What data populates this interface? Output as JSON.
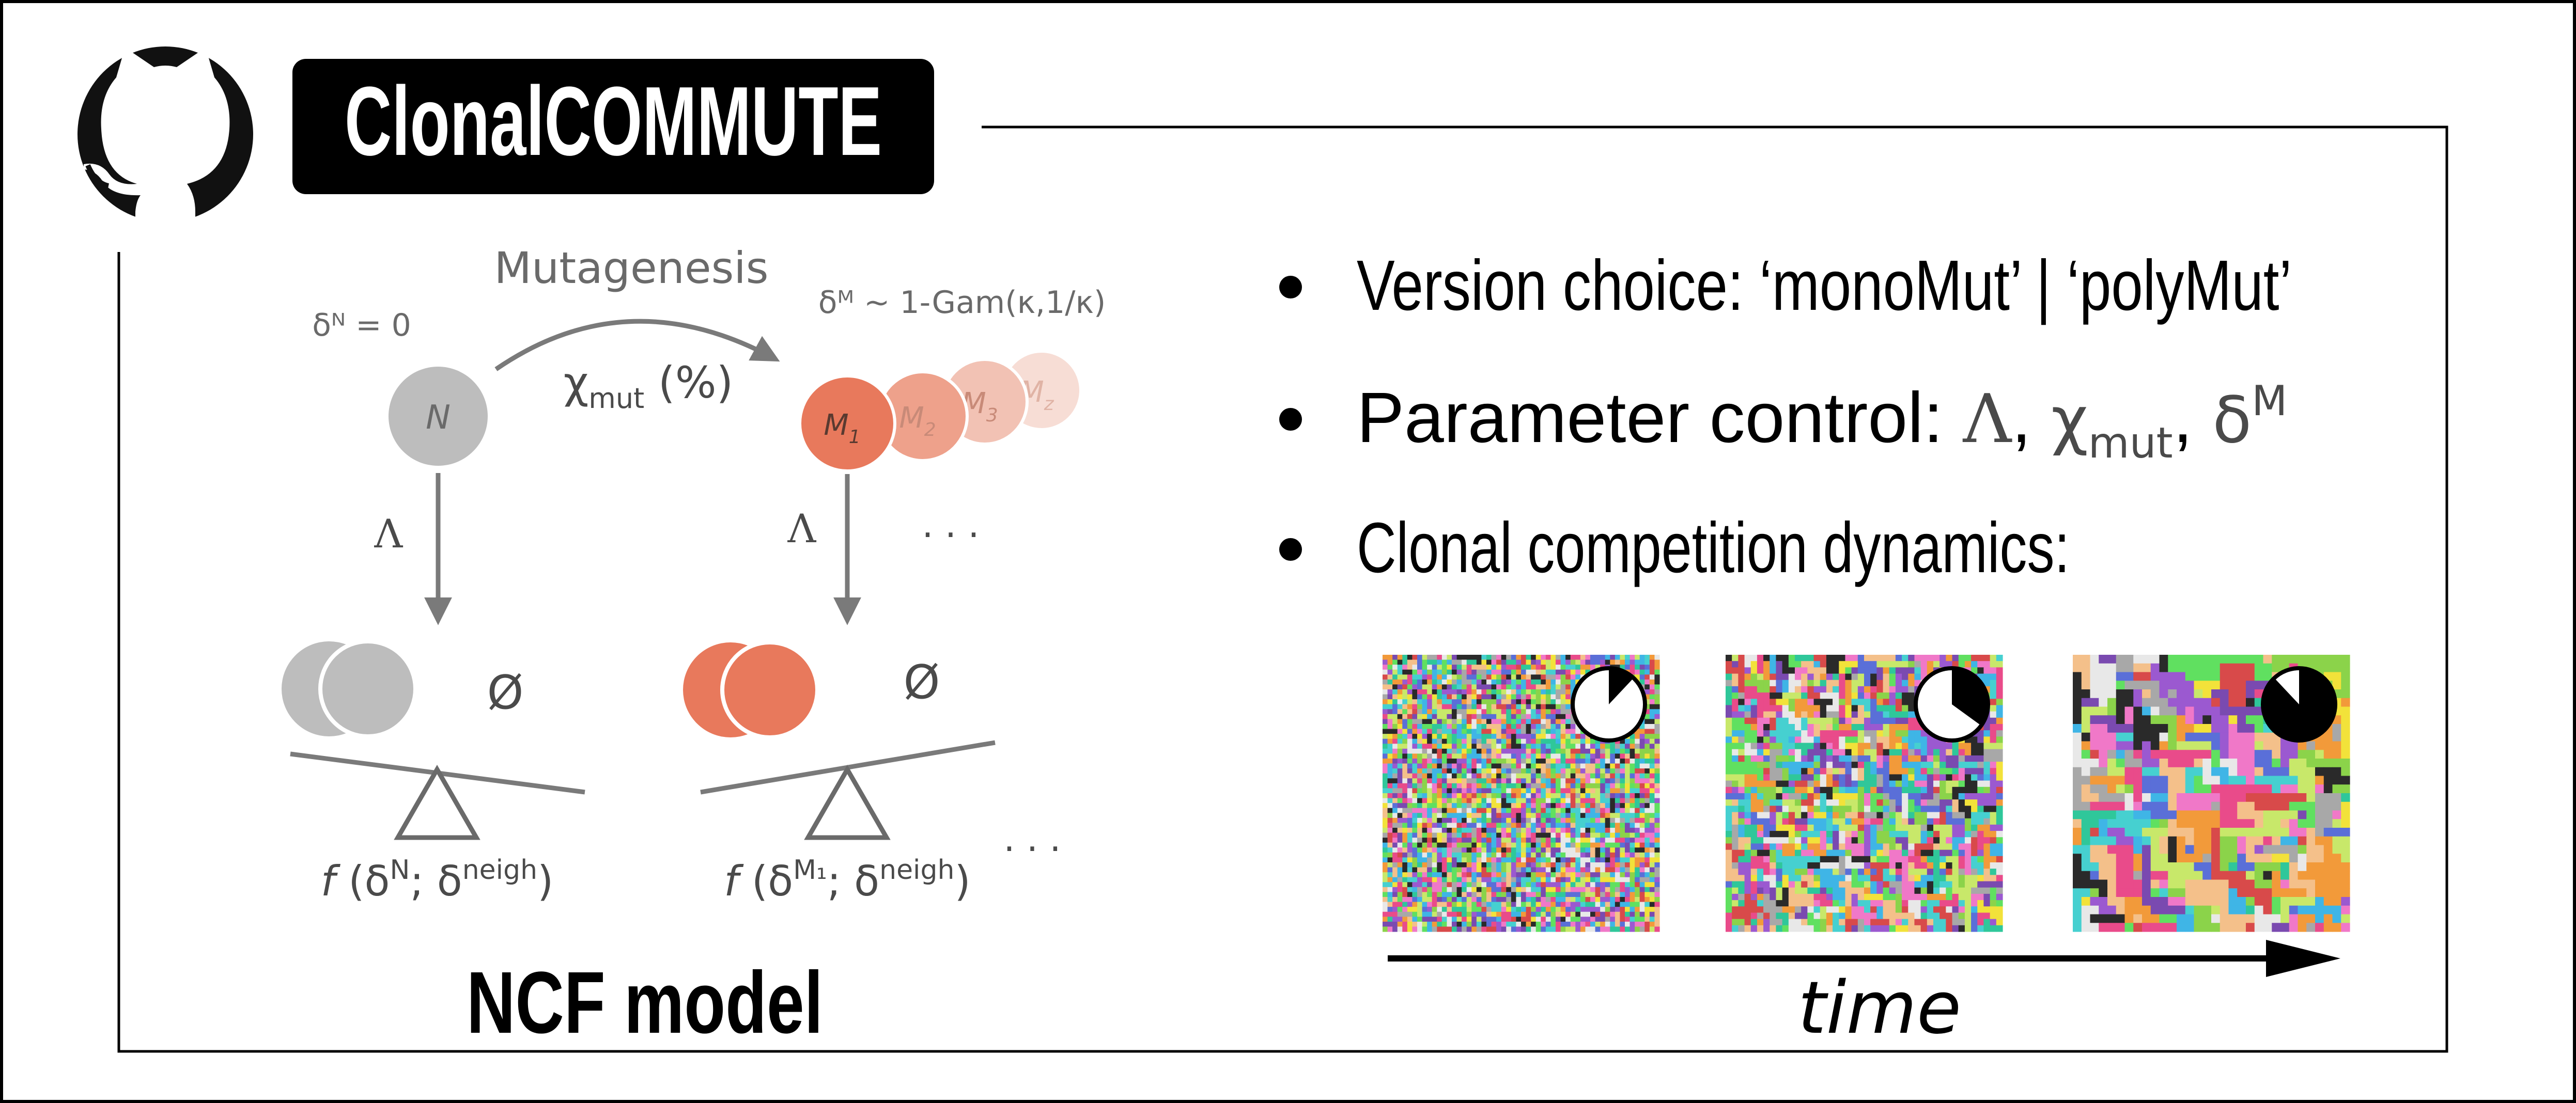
{
  "header": {
    "logo_icon": "github-octocat-icon",
    "title": "ClonalCOMMUTE"
  },
  "model": {
    "mutagenesis_label": "Mutagenesis",
    "delta_n_label": "δᴺ = 0",
    "delta_m_label": "δᴹ ~ 1-Gam(κ,1/κ)",
    "chi_symbol": "χ",
    "chi_sub": "mut",
    "chi_unit": " (%)",
    "normal_cell": "N",
    "mutant_cells": [
      {
        "letter": "M",
        "sub": "1",
        "color": "#e8795c"
      },
      {
        "letter": "M",
        "sub": "2",
        "color": "#eea18b"
      },
      {
        "letter": "M",
        "sub": "3",
        "color": "#f2c2b4"
      },
      {
        "letter": "M",
        "sub": "z",
        "color": "#f7ddd5"
      }
    ],
    "lambda_left": "Λ",
    "lambda_right": "Λ",
    "ellipsis_mid": "· · ·",
    "ellipsis_bottom": "· · ·",
    "empty_set_left": "Ø",
    "empty_set_right": "Ø",
    "fitness_left": {
      "f": "f",
      "open": " (δ",
      "sup1": "N",
      "mid": "; δ",
      "sup2": "neigh",
      "close": ")"
    },
    "fitness_right": {
      "f": "f",
      "open": " (δ",
      "sup1": "M₁",
      "mid": "; δ",
      "sup2": "neigh",
      "close": ")"
    },
    "caption": "NCF model",
    "colors": {
      "normal": "#bdbdbd",
      "mutant": "#e8795c",
      "arrow": "#7a7a7a"
    }
  },
  "features": {
    "bullets": [
      {
        "text": "Version choice:  ‘monoMut’ | ‘polyMut’"
      },
      {
        "text": "Parameter control: ",
        "lambda": "Λ",
        "comma1": ", ",
        "chi": "χ",
        "chi_sub": "mut",
        "comma2": ", ",
        "delta": "δ",
        "delta_sup": "M"
      },
      {
        "text": "Clonal competition dynamics:"
      }
    ],
    "snapshots": [
      {
        "pie_fraction": 0.12,
        "seed": 11
      },
      {
        "pie_fraction": 0.35,
        "seed": 23
      },
      {
        "pie_fraction": 0.88,
        "seed": 37
      }
    ],
    "time_label": "time"
  }
}
